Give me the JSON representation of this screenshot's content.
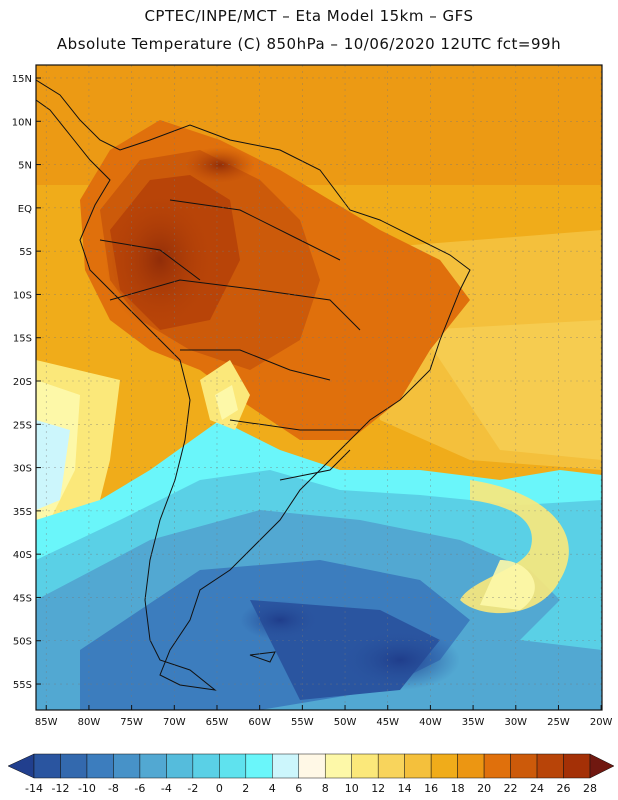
{
  "header": {
    "line1": "CPTEC/INPE/MCT –  Eta Model 15km – GFS",
    "line2": "Absolute Temperature (C) 850hPa – 10/06/2020 12UTC fct=99h"
  },
  "map": {
    "variable": "Absolute Temperature",
    "units": "C",
    "level": "850hPa",
    "lat_labels": [
      "15N",
      "10N",
      "5N",
      "EQ",
      "5S",
      "10S",
      "15S",
      "20S",
      "25S",
      "30S",
      "35S",
      "40S",
      "45S",
      "50S",
      "55S"
    ],
    "lon_labels": [
      "85W",
      "80W",
      "75W",
      "70W",
      "65W",
      "60W",
      "55W",
      "50W",
      "45W",
      "40W",
      "35W",
      "30W",
      "25W",
      "20W"
    ]
  },
  "colorbar": {
    "labels": [
      "-14",
      "-12",
      "-10",
      "-8",
      "-6",
      "-4",
      "-2",
      "0",
      "2",
      "4",
      "6",
      "8",
      "10",
      "12",
      "14",
      "16",
      "18",
      "20",
      "22",
      "24",
      "26",
      "28"
    ],
    "colors": [
      "#213f8e",
      "#2a55a0",
      "#3369ae",
      "#3c7dbe",
      "#4792c8",
      "#52a8d2",
      "#55bcdc",
      "#5ad0e6",
      "#5fe2ee",
      "#6af6fa",
      "#ccf6fc",
      "#fff8e6",
      "#fdf8a8",
      "#fbe87a",
      "#f8d45c",
      "#f4c03c",
      "#f0ac1a",
      "#ec9612",
      "#e0700c",
      "#cc5a0a",
      "#b84408",
      "#a43006",
      "#701810"
    ]
  }
}
